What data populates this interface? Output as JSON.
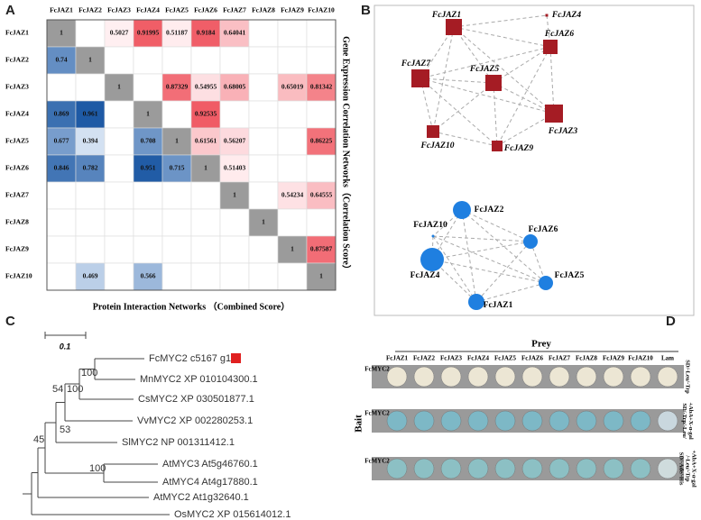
{
  "heatmap": {
    "letter": "A",
    "columns": [
      "FcJAZ1",
      "FcJAZ2",
      "FcJAZ3",
      "FcJAZ4",
      "FcJAZ5",
      "FcJAZ6",
      "FcJAZ7",
      "FcJAZ8",
      "FcJAZ9",
      "FcJAZ10"
    ],
    "rows": [
      {
        "label": "FcJAZ1",
        "cells": [
          1,
          null,
          0.5027,
          0.91995,
          0.51187,
          0.9184,
          0.64041,
          null,
          null,
          null
        ]
      },
      {
        "label": "FcJAZ2",
        "cells": [
          0.74,
          1,
          null,
          null,
          null,
          null,
          null,
          null,
          null,
          null
        ]
      },
      {
        "label": "FcJAZ3",
        "cells": [
          null,
          null,
          1,
          null,
          0.87329,
          0.54955,
          0.68005,
          null,
          0.65019,
          0.81342
        ]
      },
      {
        "label": "FcJAZ4",
        "cells": [
          0.869,
          0.961,
          null,
          1,
          null,
          0.92535,
          null,
          null,
          null,
          null
        ]
      },
      {
        "label": "FcJAZ5",
        "cells": [
          0.677,
          0.394,
          null,
          0.708,
          1,
          0.61561,
          0.56207,
          null,
          null,
          0.86225
        ]
      },
      {
        "label": "FcJAZ6",
        "cells": [
          0.846,
          0.782,
          null,
          0.951,
          0.715,
          1,
          0.51403,
          null,
          null,
          null
        ]
      },
      {
        "label": "FcJAZ7",
        "cells": [
          null,
          null,
          null,
          null,
          null,
          null,
          1,
          null,
          0.54234,
          0.64555
        ]
      },
      {
        "label": "FcJAZ8",
        "cells": [
          null,
          null,
          null,
          null,
          null,
          null,
          null,
          1,
          null,
          null
        ]
      },
      {
        "label": "FcJAZ9",
        "cells": [
          null,
          null,
          null,
          null,
          null,
          null,
          null,
          null,
          1,
          0.87587
        ]
      },
      {
        "label": "FcJAZ10",
        "cells": [
          null,
          0.469,
          null,
          0.566,
          null,
          null,
          null,
          null,
          null,
          1
        ]
      }
    ],
    "right_label": "Gene Expression Correlation Networks（Correlation Score）",
    "bottom_label": "Protein Interaction Networks （Combined Score）"
  },
  "networks": {
    "letter": "B",
    "expression_nodes": [
      "FcJAZ1",
      "FcJAZ4",
      "FcJAZ6",
      "FcJAZ7",
      "FcJAZ5",
      "FcJAZ10",
      "FcJAZ9",
      "FcJAZ3"
    ],
    "protein_nodes": [
      "FcJAZ2",
      "FcJAZ10",
      "FcJAZ6",
      "FcJAZ4",
      "FcJAZ5",
      "FcJAZ1"
    ]
  },
  "tree": {
    "letter": "C",
    "scale": "0.1",
    "leaves": [
      "FcMYC2 c5167 g1",
      "MnMYC2 XP 010104300.1",
      "CsMYC2 XP 030501877.1",
      "VvMYC2 XP 002280253.1",
      "SlMYC2 NP 001311412.1",
      "AtMYC3 At5g46760.1",
      "AtMYC4 At4g17880.1",
      "AtMYC2 At1g32640.1",
      "OsMYC2 XP 015614012.1"
    ],
    "bootstraps": [
      "100",
      "100",
      "54",
      "53",
      "45",
      "100"
    ]
  },
  "y2h": {
    "letter": "D",
    "prey": "Prey",
    "bait": "Bait",
    "columns": [
      "FcJAZ1",
      "FcJAZ2",
      "FcJAZ3",
      "FcJAZ4",
      "FcJAZ5",
      "FcJAZ6",
      "FcJAZ7",
      "FcJAZ8",
      "FcJAZ9",
      "FcJAZ10",
      "Lam"
    ],
    "rows": [
      {
        "bait": "FcMYC2",
        "medium": [
          "SD/-Leu/-Trp"
        ]
      },
      {
        "bait": "FcMYC2",
        "medium": [
          "SD/-Trp/-Leu/",
          "+AbA+X-α-gal"
        ]
      },
      {
        "bait": "FcMYC2",
        "medium": [
          "SD/-Ade/-His",
          "/-Leu/-Trp",
          "+AbA+X-α-gal"
        ]
      }
    ]
  }
}
